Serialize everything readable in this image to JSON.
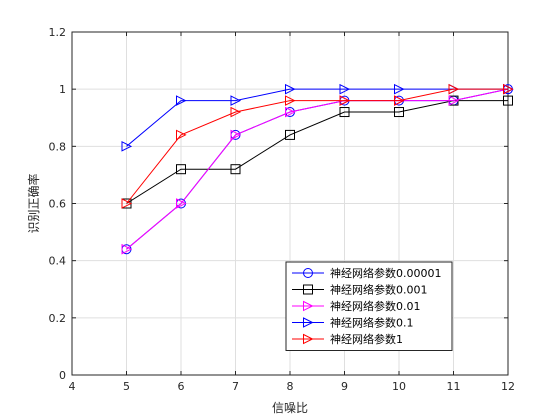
{
  "chart_data": {
    "type": "line",
    "xlabel": "信噪比",
    "ylabel": "识别正确率",
    "xlim": [
      4,
      12
    ],
    "ylim": [
      0,
      1.2
    ],
    "x_ticks": [
      4,
      5,
      6,
      7,
      8,
      9,
      10,
      11,
      12
    ],
    "y_ticks": [
      "0",
      "0.2",
      "0.4",
      "0.6",
      "0.8",
      "1",
      "1.2"
    ],
    "y_tick_values": [
      0,
      0.2,
      0.4,
      0.6,
      0.8,
      1.0,
      1.2
    ],
    "grid": true,
    "legend_position": "bottom-right",
    "series": [
      {
        "name": "神经网络参数0.00001",
        "color": "#0000ff",
        "marker": "circle",
        "x": [
          5,
          6,
          7,
          8,
          9,
          10,
          11,
          12
        ],
        "y": [
          0.44,
          0.6,
          0.84,
          0.92,
          0.96,
          0.96,
          0.96,
          1.0
        ]
      },
      {
        "name": "神经网络参数0.001",
        "color": "#000000",
        "marker": "square",
        "x": [
          5,
          6,
          7,
          8,
          9,
          10,
          11,
          12
        ],
        "y": [
          0.6,
          0.72,
          0.72,
          0.84,
          0.92,
          0.92,
          0.96,
          0.96
        ]
      },
      {
        "name": "神经网络参数0.01",
        "color": "#ff00ff",
        "marker": "triangle-right",
        "x": [
          5,
          6,
          7,
          8,
          9,
          10,
          11,
          12
        ],
        "y": [
          0.44,
          0.6,
          0.84,
          0.92,
          0.96,
          0.96,
          0.96,
          1.0
        ]
      },
      {
        "name": "神经网络参数0.1",
        "color": "#0000ff",
        "marker": "triangle-right",
        "x": [
          5,
          6,
          7,
          8,
          9,
          10,
          11,
          12
        ],
        "y": [
          0.8,
          0.96,
          0.96,
          1.0,
          1.0,
          1.0,
          1.0,
          1.0
        ]
      },
      {
        "name": "神经网络参数1",
        "color": "#ff0000",
        "marker": "triangle-right",
        "x": [
          5,
          6,
          7,
          8,
          9,
          10,
          11,
          12
        ],
        "y": [
          0.6,
          0.84,
          0.92,
          0.96,
          0.96,
          0.96,
          1.0,
          1.0
        ]
      }
    ]
  }
}
